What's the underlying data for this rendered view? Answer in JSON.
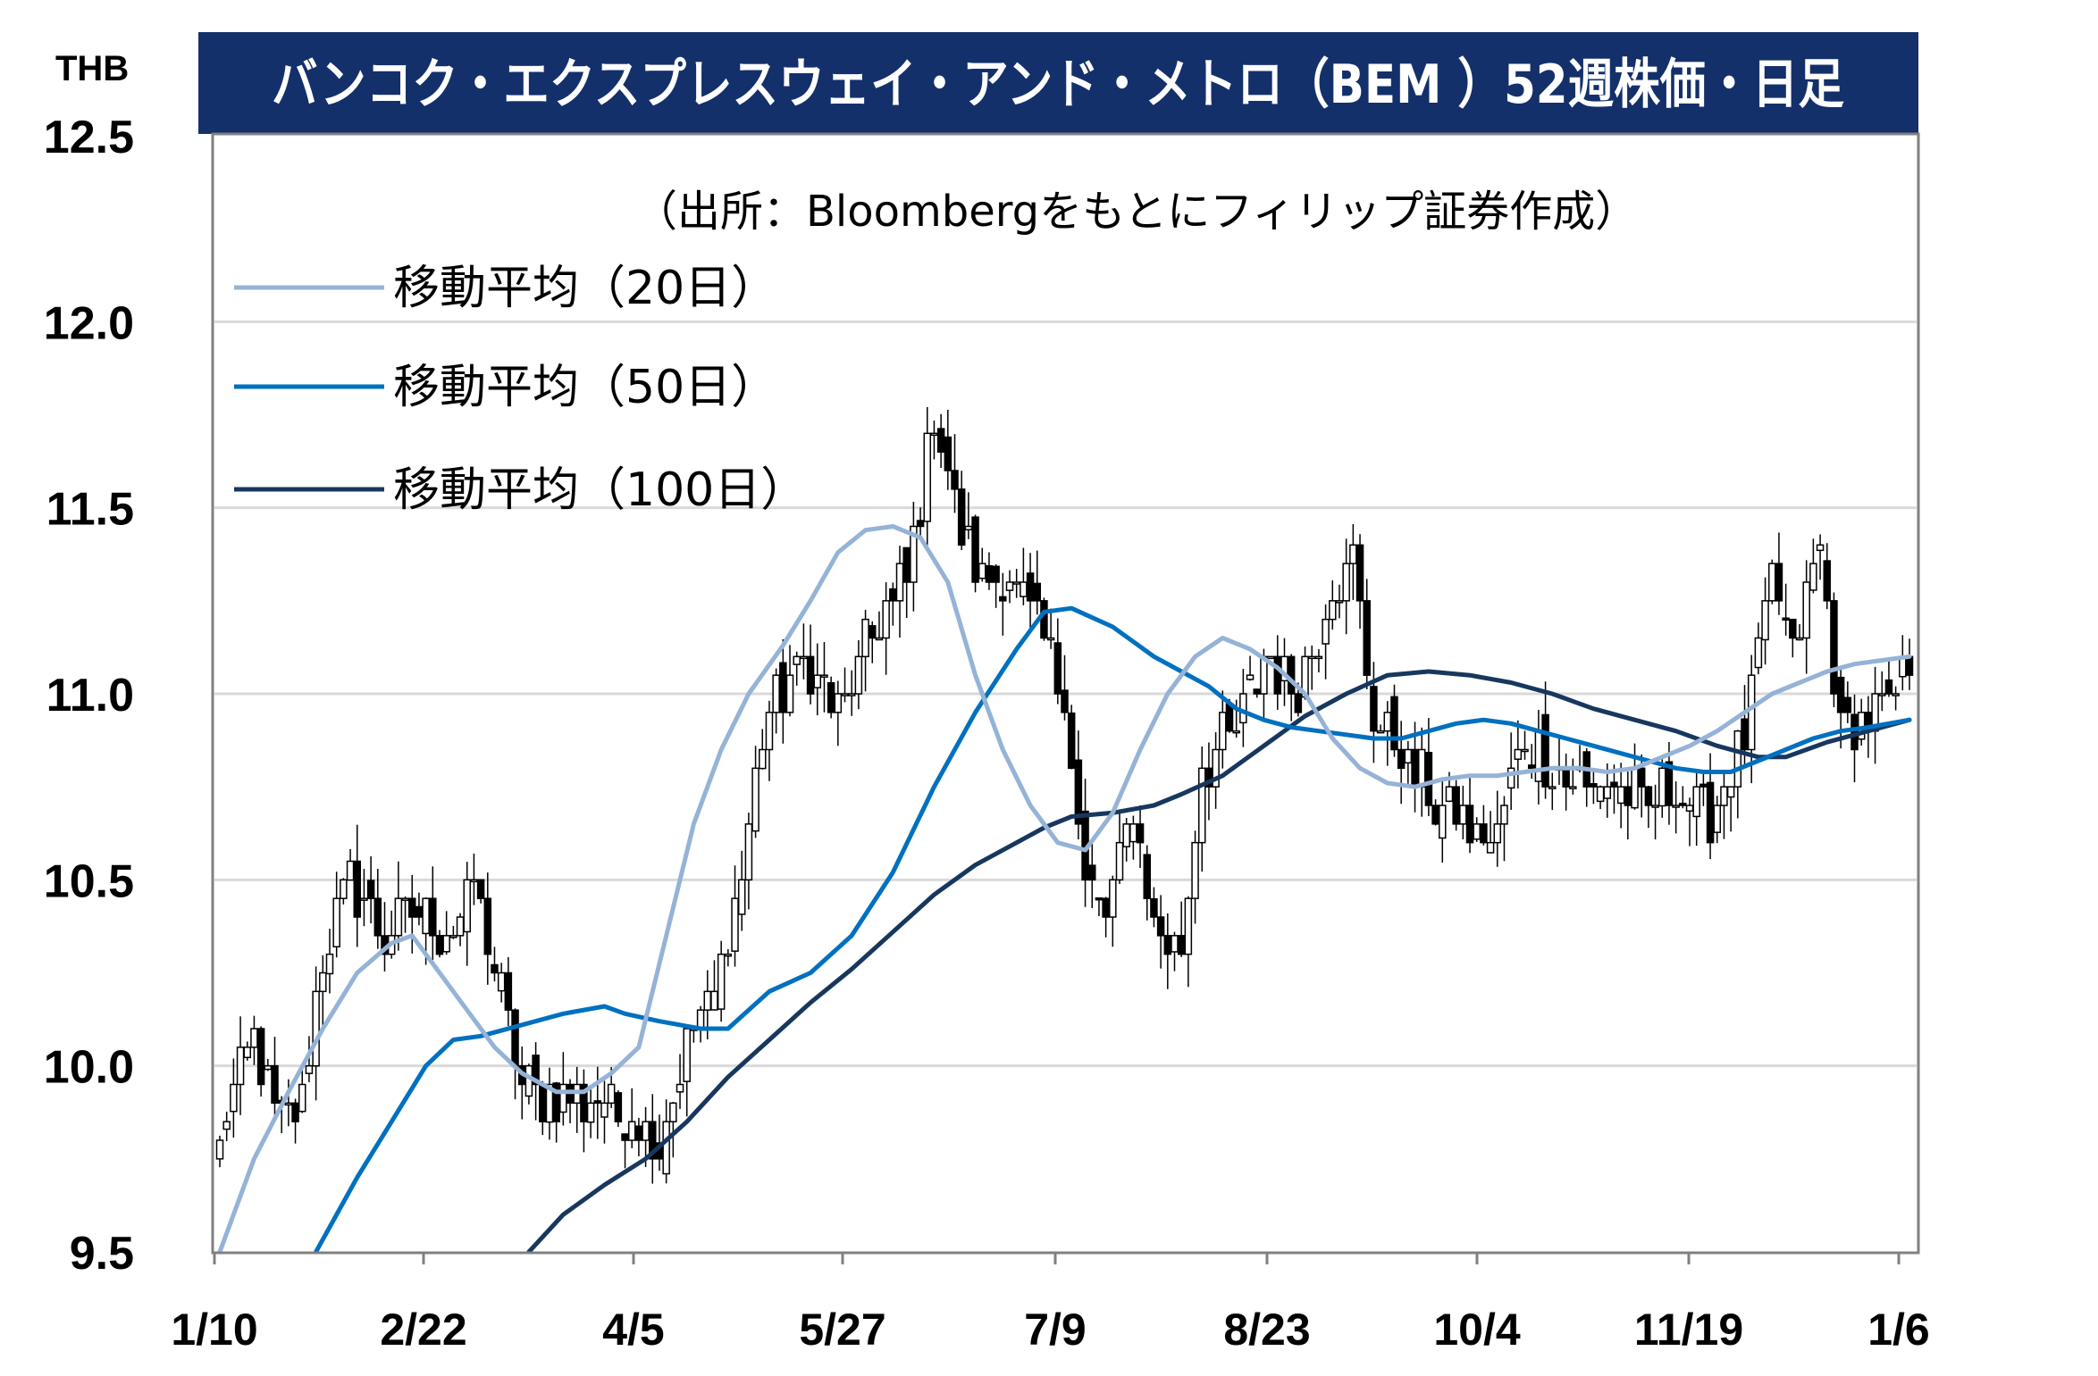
{
  "chart_data": {
    "type": "candlestick",
    "title": "バンコク・エクスプレスウェイ・アンド・メトロ（BEM ）52週株価・日足",
    "source": "（出所：Bloombergをもとにフィリップ証券作成）",
    "ylabel": "THB",
    "ylim": [
      9.5,
      12.5
    ],
    "yticks": [
      "12.5",
      "12.0",
      "11.5",
      "11.0",
      "10.5",
      "10.0",
      "9.5"
    ],
    "x_tick_labels": [
      "1/10",
      "2/22",
      "4/5",
      "5/27",
      "7/9",
      "8/23",
      "10/4",
      "11/19",
      "1/6"
    ],
    "grid": true,
    "legend_placement": "top-left",
    "colors": {
      "title_bg": "#14306b",
      "ma20": "#95b3d7",
      "ma50": "#0070c0",
      "ma100": "#17375e"
    },
    "series": [
      {
        "name": "移動平均（20日）",
        "key": "ma20"
      },
      {
        "name": "移動平均（50日）",
        "key": "ma50"
      },
      {
        "name": "移動平均（100日）",
        "key": "ma100"
      }
    ],
    "close_anchors": [
      [
        0,
        9.8
      ],
      [
        5,
        10.1
      ],
      [
        8,
        9.85
      ],
      [
        12,
        9.9
      ],
      [
        15,
        10.3
      ],
      [
        19,
        10.5
      ],
      [
        24,
        10.35
      ],
      [
        28,
        10.4
      ],
      [
        34,
        10.35
      ],
      [
        37,
        10.5
      ],
      [
        41,
        10.2
      ],
      [
        44,
        9.95
      ],
      [
        50,
        9.9
      ],
      [
        56,
        9.9
      ],
      [
        61,
        9.85
      ],
      [
        64,
        9.8
      ],
      [
        69,
        10.1
      ],
      [
        72,
        10.2
      ],
      [
        76,
        10.5
      ],
      [
        79,
        10.9
      ],
      [
        85,
        11.1
      ],
      [
        90,
        10.95
      ],
      [
        96,
        11.2
      ],
      [
        100,
        11.3
      ],
      [
        104,
        11.75
      ],
      [
        107,
        11.5
      ],
      [
        111,
        11.3
      ],
      [
        115,
        11.3
      ],
      [
        119,
        11.2
      ],
      [
        123,
        11.0
      ],
      [
        126,
        10.5
      ],
      [
        129,
        10.4
      ],
      [
        133,
        10.7
      ],
      [
        136,
        10.4
      ],
      [
        140,
        10.3
      ],
      [
        143,
        10.8
      ],
      [
        148,
        10.9
      ],
      [
        152,
        11.1
      ],
      [
        157,
        11.0
      ],
      [
        162,
        11.3
      ],
      [
        165,
        11.35
      ],
      [
        168,
        10.95
      ],
      [
        172,
        10.85
      ],
      [
        177,
        10.7
      ],
      [
        181,
        10.65
      ],
      [
        186,
        10.6
      ],
      [
        190,
        10.9
      ],
      [
        194,
        10.8
      ],
      [
        199,
        10.75
      ],
      [
        203,
        10.75
      ],
      [
        208,
        10.7
      ],
      [
        212,
        10.75
      ],
      [
        217,
        10.65
      ],
      [
        222,
        10.9
      ],
      [
        226,
        11.3
      ],
      [
        229,
        11.1
      ],
      [
        233,
        11.4
      ],
      [
        236,
        10.9
      ],
      [
        240,
        10.95
      ],
      [
        243,
        10.95
      ],
      [
        246,
        11.1
      ]
    ],
    "ma20_points": [
      [
        0,
        9.5
      ],
      [
        5,
        9.75
      ],
      [
        10,
        9.93
      ],
      [
        15,
        10.1
      ],
      [
        20,
        10.25
      ],
      [
        25,
        10.33
      ],
      [
        28,
        10.35
      ],
      [
        32,
        10.25
      ],
      [
        36,
        10.15
      ],
      [
        40,
        10.05
      ],
      [
        44,
        9.98
      ],
      [
        49,
        9.93
      ],
      [
        53,
        9.93
      ],
      [
        57,
        9.98
      ],
      [
        61,
        10.05
      ],
      [
        65,
        10.35
      ],
      [
        69,
        10.65
      ],
      [
        73,
        10.85
      ],
      [
        77,
        11.0
      ],
      [
        82,
        11.13
      ],
      [
        86,
        11.25
      ],
      [
        90,
        11.38
      ],
      [
        94,
        11.44
      ],
      [
        98,
        11.45
      ],
      [
        102,
        11.42
      ],
      [
        106,
        11.3
      ],
      [
        110,
        11.05
      ],
      [
        114,
        10.85
      ],
      [
        118,
        10.7
      ],
      [
        122,
        10.6
      ],
      [
        126,
        10.58
      ],
      [
        130,
        10.68
      ],
      [
        134,
        10.85
      ],
      [
        138,
        11.0
      ],
      [
        142,
        11.1
      ],
      [
        146,
        11.15
      ],
      [
        150,
        11.12
      ],
      [
        154,
        11.07
      ],
      [
        158,
        11.0
      ],
      [
        162,
        10.88
      ],
      [
        166,
        10.8
      ],
      [
        170,
        10.76
      ],
      [
        174,
        10.75
      ],
      [
        178,
        10.77
      ],
      [
        182,
        10.78
      ],
      [
        186,
        10.78
      ],
      [
        190,
        10.79
      ],
      [
        194,
        10.8
      ],
      [
        198,
        10.8
      ],
      [
        202,
        10.79
      ],
      [
        206,
        10.8
      ],
      [
        210,
        10.83
      ],
      [
        214,
        10.86
      ],
      [
        218,
        10.9
      ],
      [
        222,
        10.95
      ],
      [
        226,
        11.0
      ],
      [
        230,
        11.03
      ],
      [
        234,
        11.06
      ],
      [
        238,
        11.08
      ],
      [
        242,
        11.09
      ],
      [
        246,
        11.1
      ]
    ],
    "ma50_points": [
      [
        14,
        9.5
      ],
      [
        20,
        9.7
      ],
      [
        26,
        9.88
      ],
      [
        30,
        10.0
      ],
      [
        34,
        10.07
      ],
      [
        38,
        10.08
      ],
      [
        44,
        10.11
      ],
      [
        50,
        10.14
      ],
      [
        56,
        10.16
      ],
      [
        59,
        10.14
      ],
      [
        64,
        10.12
      ],
      [
        70,
        10.1
      ],
      [
        74,
        10.1
      ],
      [
        80,
        10.2
      ],
      [
        86,
        10.25
      ],
      [
        92,
        10.35
      ],
      [
        98,
        10.52
      ],
      [
        104,
        10.75
      ],
      [
        110,
        10.95
      ],
      [
        116,
        11.12
      ],
      [
        120,
        11.22
      ],
      [
        124,
        11.23
      ],
      [
        130,
        11.18
      ],
      [
        136,
        11.1
      ],
      [
        140,
        11.06
      ],
      [
        144,
        11.02
      ],
      [
        148,
        10.96
      ],
      [
        152,
        10.93
      ],
      [
        156,
        10.91
      ],
      [
        160,
        10.9
      ],
      [
        164,
        10.89
      ],
      [
        168,
        10.88
      ],
      [
        172,
        10.88
      ],
      [
        176,
        10.9
      ],
      [
        180,
        10.92
      ],
      [
        184,
        10.93
      ],
      [
        188,
        10.92
      ],
      [
        192,
        10.9
      ],
      [
        196,
        10.88
      ],
      [
        200,
        10.86
      ],
      [
        204,
        10.84
      ],
      [
        208,
        10.82
      ],
      [
        212,
        10.8
      ],
      [
        216,
        10.79
      ],
      [
        220,
        10.79
      ],
      [
        224,
        10.82
      ],
      [
        228,
        10.85
      ],
      [
        232,
        10.88
      ],
      [
        236,
        10.9
      ],
      [
        240,
        10.91
      ],
      [
        246,
        10.93
      ]
    ],
    "ma100_points": [
      [
        45,
        9.5
      ],
      [
        50,
        9.6
      ],
      [
        56,
        9.68
      ],
      [
        62,
        9.75
      ],
      [
        68,
        9.85
      ],
      [
        74,
        9.97
      ],
      [
        80,
        10.07
      ],
      [
        86,
        10.17
      ],
      [
        92,
        10.26
      ],
      [
        98,
        10.36
      ],
      [
        104,
        10.46
      ],
      [
        110,
        10.54
      ],
      [
        116,
        10.6
      ],
      [
        120,
        10.64
      ],
      [
        124,
        10.67
      ],
      [
        130,
        10.68
      ],
      [
        136,
        10.7
      ],
      [
        140,
        10.73
      ],
      [
        146,
        10.78
      ],
      [
        152,
        10.86
      ],
      [
        158,
        10.94
      ],
      [
        164,
        11.0
      ],
      [
        170,
        11.05
      ],
      [
        176,
        11.06
      ],
      [
        182,
        11.05
      ],
      [
        188,
        11.03
      ],
      [
        194,
        11.0
      ],
      [
        200,
        10.96
      ],
      [
        206,
        10.93
      ],
      [
        212,
        10.9
      ],
      [
        218,
        10.86
      ],
      [
        224,
        10.83
      ],
      [
        228,
        10.83
      ],
      [
        234,
        10.87
      ],
      [
        240,
        10.9
      ],
      [
        246,
        10.93
      ]
    ]
  }
}
